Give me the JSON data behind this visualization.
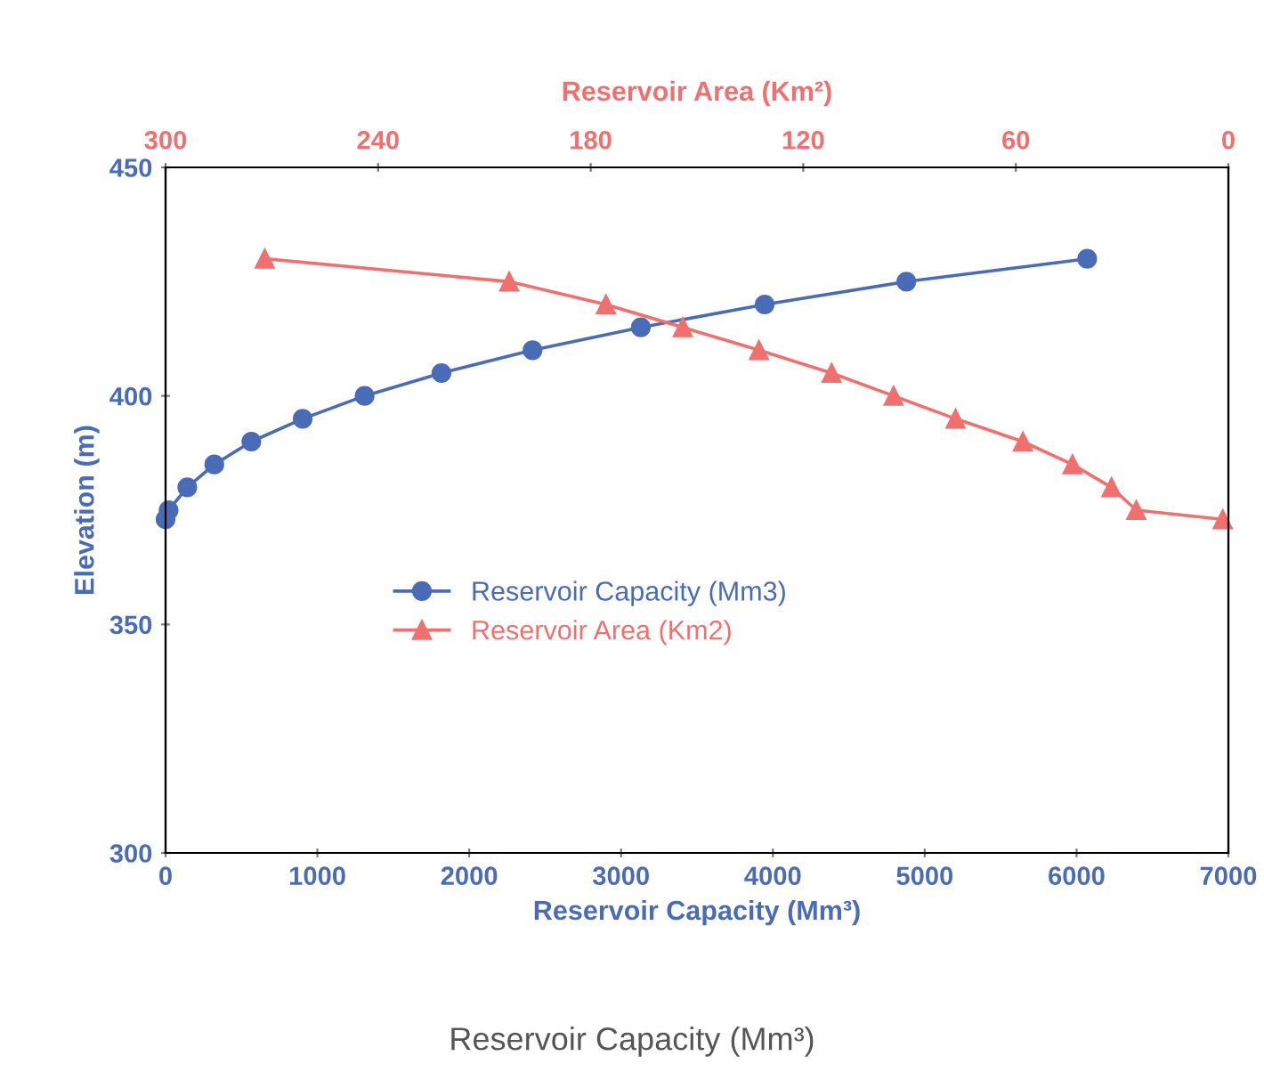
{
  "chart_data": {
    "type": "line",
    "xlabel": "Reservoir Capacity (Mm³)",
    "x2label": "Reservoir Area (Km²)",
    "ylabel": "Elevation (m)",
    "xlim": [
      0,
      7000
    ],
    "xticks": [
      0,
      1000,
      2000,
      3000,
      4000,
      5000,
      6000,
      7000
    ],
    "x2lim": [
      300,
      0
    ],
    "x2ticks": [
      300,
      240,
      180,
      120,
      60,
      0
    ],
    "ylim": [
      300,
      450
    ],
    "yticks": [
      300,
      350,
      400,
      450
    ],
    "grid": false,
    "legend": "center",
    "series": [
      {
        "name": "Reservoir Capacity (Mm3)",
        "color": "#4a6bb5",
        "marker": "circle",
        "x": [
          0,
          20,
          143,
          321,
          565,
          903,
          1311,
          1817,
          2417,
          3130,
          3946,
          4879,
          6070
        ],
        "values": [
          373,
          375,
          380,
          385,
          390,
          395,
          400,
          405,
          410,
          415,
          420,
          425,
          430
        ]
      },
      {
        "name": "Reservoir Area (Km2)",
        "color": "#f07070",
        "marker": "triangle",
        "axis": "x2",
        "x": [
          272,
          203,
          175.7,
          154,
          132.5,
          112,
          94.5,
          77,
          58,
          44,
          33,
          26,
          1.6
        ],
        "values": [
          430,
          425,
          420,
          415,
          410,
          405,
          400,
          395,
          390,
          385,
          380,
          375,
          373
        ]
      }
    ],
    "annotations": [
      "Reservoir Capacity (Mm³)"
    ]
  }
}
